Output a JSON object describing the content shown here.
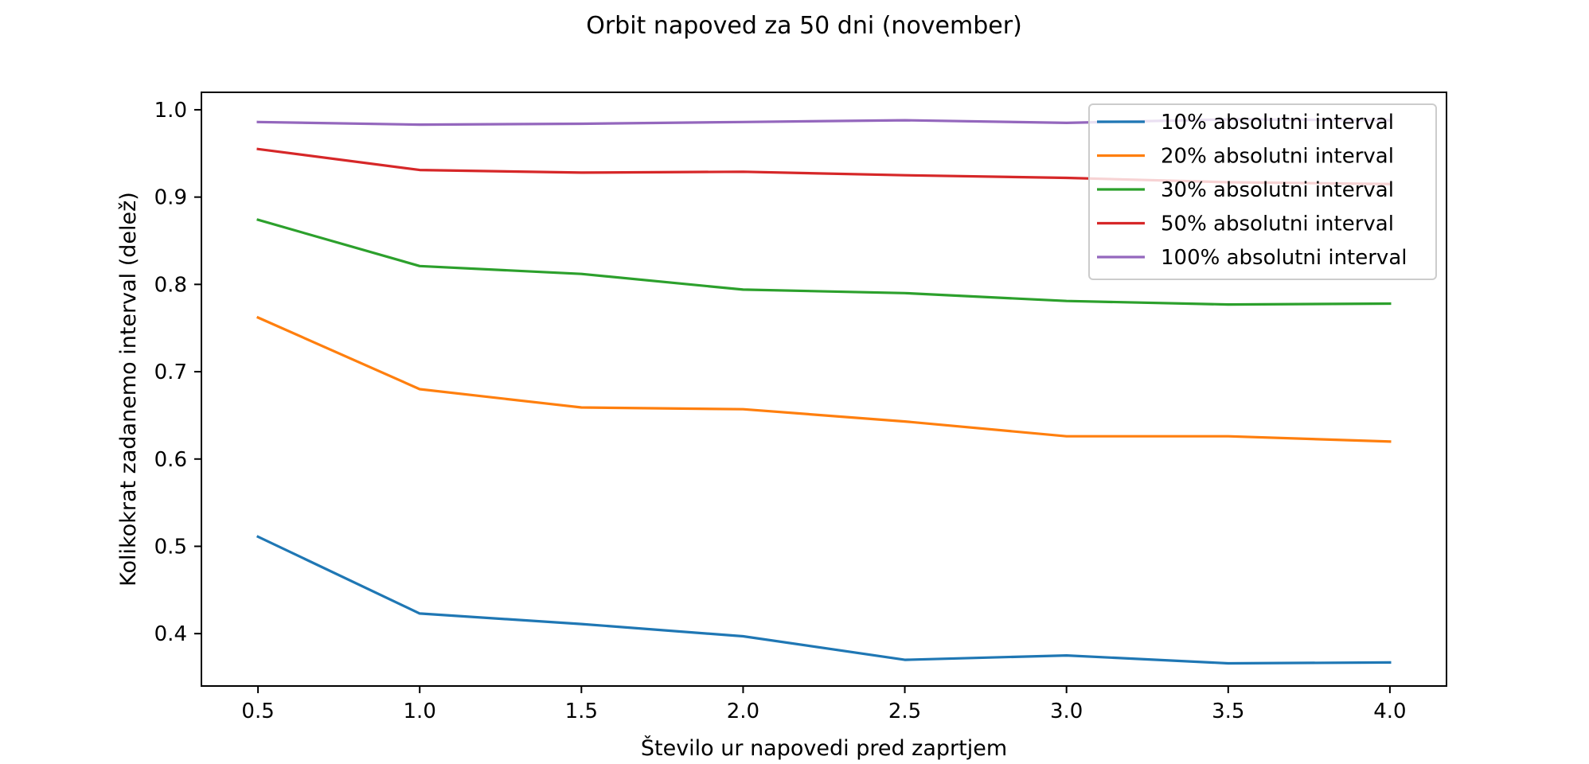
{
  "chart_data": {
    "type": "line",
    "title": "Orbit napoved za 50 dni (november)",
    "xlabel": "Število ur napovedi pred zaprtjem",
    "ylabel": "Kolikokrat zadanemo interval (delež)",
    "x": [
      0.5,
      1.0,
      1.5,
      2.0,
      2.5,
      3.0,
      3.5,
      4.0
    ],
    "xlim": [
      0.325,
      4.175
    ],
    "ylim": [
      0.34,
      1.02
    ],
    "xticks": [
      "0.5",
      "1.0",
      "1.5",
      "2.0",
      "2.5",
      "3.0",
      "3.5",
      "4.0"
    ],
    "yticks": [
      "0.4",
      "0.5",
      "0.6",
      "0.7",
      "0.8",
      "0.9",
      "1.0"
    ],
    "grid": false,
    "legend_position": "top-right",
    "series": [
      {
        "name": "10% absolutni interval",
        "color": "#1f77b4",
        "values": [
          0.511,
          0.423,
          0.411,
          0.397,
          0.37,
          0.375,
          0.366,
          0.367
        ]
      },
      {
        "name": "20% absolutni interval",
        "color": "#ff7f0e",
        "values": [
          0.762,
          0.68,
          0.659,
          0.657,
          0.643,
          0.626,
          0.626,
          0.62
        ]
      },
      {
        "name": "30% absolutni interval",
        "color": "#2ca02c",
        "values": [
          0.874,
          0.821,
          0.812,
          0.794,
          0.79,
          0.781,
          0.777,
          0.778
        ]
      },
      {
        "name": "50% absolutni interval",
        "color": "#d62728",
        "values": [
          0.955,
          0.931,
          0.928,
          0.929,
          0.925,
          0.922,
          0.917,
          0.915
        ]
      },
      {
        "name": "100% absolutni interval",
        "color": "#9467bd",
        "values": [
          0.986,
          0.983,
          0.984,
          0.986,
          0.988,
          0.985,
          0.989,
          0.988
        ]
      }
    ]
  }
}
